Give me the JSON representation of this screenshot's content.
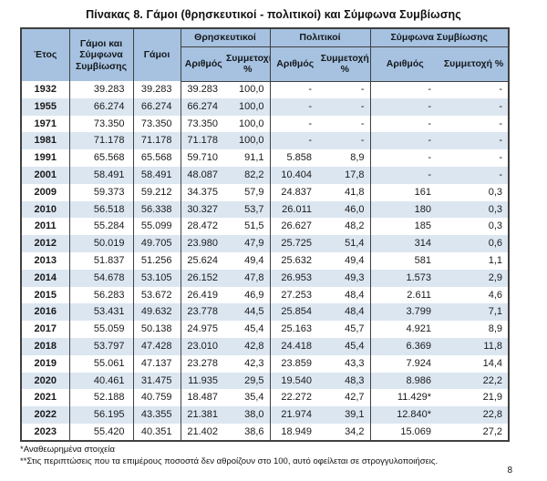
{
  "page": {
    "title": "Πίνακας 8. Γάμοι (θρησκευτικοί - πολιτικοί) και Σύμφωνα Συμβίωσης",
    "page_number": "8",
    "footnotes": [
      "*Αναθεωρημένα στοιχεία",
      "**Στις περιπτώσεις που τα επιμέρους ποσοστά δεν αθροίζουν στο 100, αυτό οφείλεται σε στρογγυλοποιήσεις."
    ]
  },
  "colors": {
    "header_bg": "#a6c2e0",
    "stripe_bg": "#dce6f1",
    "border": "#404040"
  },
  "table": {
    "headers": {
      "year": "Έτος",
      "total": "Γάμοι και Σύμφωνα Συμβίωσης",
      "marriages": "Γάμοι",
      "groups": [
        {
          "label": "Θρησκευτικοί"
        },
        {
          "label": "Πολιτικοί"
        },
        {
          "label": "Σύμφωνα Συμβίωσης"
        }
      ],
      "sub_number": "Αριθμός",
      "sub_share": "Συμμετοχή %"
    },
    "rows": [
      {
        "year": "1932",
        "values": [
          "39.283",
          "39.283",
          "39.283",
          "100,0",
          "-",
          "-",
          "-",
          "-"
        ]
      },
      {
        "year": "1955",
        "values": [
          "66.274",
          "66.274",
          "66.274",
          "100,0",
          "-",
          "-",
          "-",
          "-"
        ]
      },
      {
        "year": "1971",
        "values": [
          "73.350",
          "73.350",
          "73.350",
          "100,0",
          "-",
          "-",
          "-",
          "-"
        ]
      },
      {
        "year": "1981",
        "values": [
          "71.178",
          "71.178",
          "71.178",
          "100,0",
          "-",
          "-",
          "-",
          "-"
        ]
      },
      {
        "year": "1991",
        "values": [
          "65.568",
          "65.568",
          "59.710",
          "91,1",
          "5.858",
          "8,9",
          "-",
          "-"
        ]
      },
      {
        "year": "2001",
        "values": [
          "58.491",
          "58.491",
          "48.087",
          "82,2",
          "10.404",
          "17,8",
          "-",
          "-"
        ]
      },
      {
        "year": "2009",
        "values": [
          "59.373",
          "59.212",
          "34.375",
          "57,9",
          "24.837",
          "41,8",
          "161",
          "0,3"
        ]
      },
      {
        "year": "2010",
        "values": [
          "56.518",
          "56.338",
          "30.327",
          "53,7",
          "26.011",
          "46,0",
          "180",
          "0,3"
        ]
      },
      {
        "year": "2011",
        "values": [
          "55.284",
          "55.099",
          "28.472",
          "51,5",
          "26.627",
          "48,2",
          "185",
          "0,3"
        ]
      },
      {
        "year": "2012",
        "values": [
          "50.019",
          "49.705",
          "23.980",
          "47,9",
          "25.725",
          "51,4",
          "314",
          "0,6"
        ]
      },
      {
        "year": "2013",
        "values": [
          "51.837",
          "51.256",
          "25.624",
          "49,4",
          "25.632",
          "49,4",
          "581",
          "1,1"
        ]
      },
      {
        "year": "2014",
        "values": [
          "54.678",
          "53.105",
          "26.152",
          "47,8",
          "26.953",
          "49,3",
          "1.573",
          "2,9"
        ]
      },
      {
        "year": "2015",
        "values": [
          "56.283",
          "53.672",
          "26.419",
          "46,9",
          "27.253",
          "48,4",
          "2.611",
          "4,6"
        ]
      },
      {
        "year": "2016",
        "values": [
          "53.431",
          "49.632",
          "23.778",
          "44,5",
          "25.854",
          "48,4",
          "3.799",
          "7,1"
        ]
      },
      {
        "year": "2017",
        "values": [
          "55.059",
          "50.138",
          "24.975",
          "45,4",
          "25.163",
          "45,7",
          "4.921",
          "8,9"
        ]
      },
      {
        "year": "2018",
        "values": [
          "53.797",
          "47.428",
          "23.010",
          "42,8",
          "24.418",
          "45,4",
          "6.369",
          "11,8"
        ]
      },
      {
        "year": "2019",
        "values": [
          "55.061",
          "47.137",
          "23.278",
          "42,3",
          "23.859",
          "43,3",
          "7.924",
          "14,4"
        ]
      },
      {
        "year": "2020",
        "values": [
          "40.461",
          "31.475",
          "11.935",
          "29,5",
          "19.540",
          "48,3",
          "8.986",
          "22,2"
        ]
      },
      {
        "year": "2021",
        "values": [
          "52.188",
          "40.759",
          "18.487",
          "35,4",
          "22.272",
          "42,7",
          "11.429*",
          "21,9"
        ]
      },
      {
        "year": "2022",
        "values": [
          "56.195",
          "43.355",
          "21.381",
          "38,0",
          "21.974",
          "39,1",
          "12.840*",
          "22,8"
        ]
      },
      {
        "year": "2023",
        "values": [
          "55.420",
          "40.351",
          "21.402",
          "38,6",
          "18.949",
          "34,2",
          "15.069",
          "27,2"
        ]
      }
    ]
  }
}
